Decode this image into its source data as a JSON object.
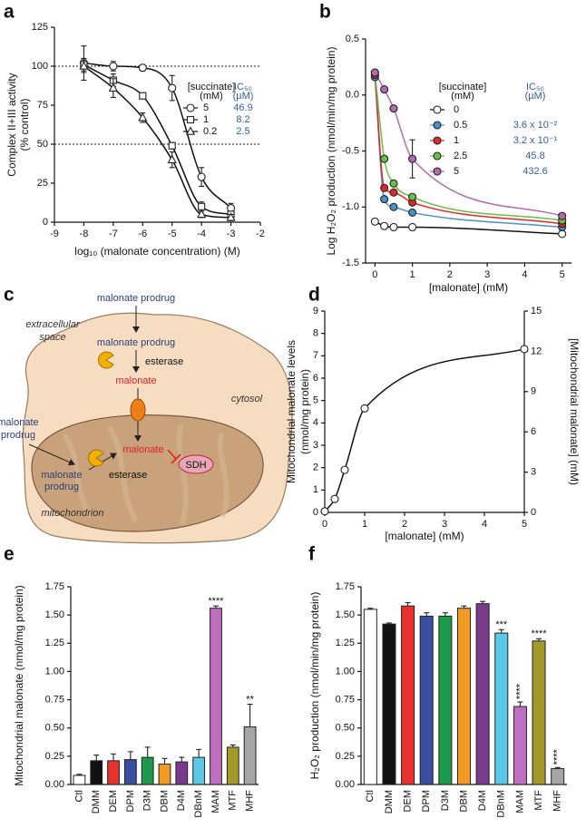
{
  "chart_data": [
    {
      "label": "a",
      "type": "line",
      "y_label": [
        "Complex II+III activity",
        "(% control)"
      ],
      "x_label": "log₁₀ (malonate concentration) (M)",
      "xlim": [
        -9,
        -2
      ],
      "xticks": [
        -9,
        -8,
        -7,
        -6,
        -5,
        -4,
        -3,
        -2
      ],
      "ylim": [
        0,
        125
      ],
      "yticks": [
        0,
        25,
        50,
        75,
        100,
        125
      ],
      "reference_lines": [
        100,
        50
      ],
      "legend_title": [
        "[succinate]",
        "(mM)"
      ],
      "legend_ic50_title": [
        "IC₅₀",
        "(µM)"
      ],
      "ic50_color": "#2f5ea8",
      "x": [
        -8,
        -7,
        -6,
        -5,
        -4,
        -3
      ],
      "series": [
        {
          "name": "5",
          "marker": "circle",
          "color": "#ffffff",
          "line_color": "#111111",
          "ic50": "46.9",
          "values": [
            102,
            100,
            99,
            86,
            29,
            9
          ],
          "errors": [
            11,
            3,
            2,
            8,
            6,
            3
          ]
        },
        {
          "name": "1",
          "marker": "square",
          "color": "#ffffff",
          "line_color": "#111111",
          "ic50": "8.2",
          "values": [
            101,
            91,
            81,
            49,
            10,
            5
          ],
          "errors": [
            4,
            4,
            2,
            2,
            3,
            2
          ]
        },
        {
          "name": "0.2",
          "marker": "triangle",
          "color": "#ffffff",
          "line_color": "#111111",
          "ic50": "2.5",
          "values": [
            100,
            86,
            67,
            40,
            5,
            3
          ],
          "errors": [
            4,
            6,
            3,
            5,
            2,
            2
          ]
        }
      ]
    },
    {
      "label": "b",
      "type": "line",
      "y_label": [
        "Log H₂O₂ production (nmol/min/mg protein)"
      ],
      "x_label": "[malonate] (mM)",
      "xlim": [
        -0.25,
        5.25
      ],
      "xticks": [
        0,
        1,
        2,
        3,
        4,
        5
      ],
      "ylim": [
        -1.5,
        0.5
      ],
      "yticks": [
        -1.5,
        {
          "value": -1,
          "label": "-1.0"
        },
        -0.5,
        {
          "value": 0,
          "label": "0.0"
        },
        0.5
      ],
      "legend_title": [
        "[succinate]",
        "(mM)"
      ],
      "legend_ic50_title": [
        "IC₅₀",
        "(µM)"
      ],
      "ic50_color": "#2f5ea8",
      "x": [
        0,
        0.25,
        0.5,
        1,
        5
      ],
      "series": [
        {
          "name": "0",
          "marker": "circle",
          "color": "#ffffff",
          "line_color": "#111111",
          "values": [
            -1.13,
            -1.17,
            -1.18,
            -1.18,
            -1.24
          ]
        },
        {
          "name": "0.5",
          "marker": "circle",
          "color": "#4a90c8",
          "line_color": "#4a90c8",
          "ic50": "3.6 x 10⁻²",
          "values": [
            0.16,
            -0.93,
            -1.0,
            -1.05,
            -1.18
          ]
        },
        {
          "name": "1",
          "marker": "circle",
          "color": "#e3262b",
          "line_color": "#e3262b",
          "ic50": "3.2 x 10⁻¹",
          "values": [
            0.18,
            -0.83,
            -0.87,
            -0.96,
            -1.15
          ]
        },
        {
          "name": "2.5",
          "marker": "circle",
          "color": "#6abf45",
          "line_color": "#6abf45",
          "ic50": "45.8",
          "values": [
            0.2,
            -0.57,
            -0.79,
            -0.91,
            -1.12
          ]
        },
        {
          "name": "5",
          "marker": "circle",
          "color": "#b36bb0",
          "line_color": "#b36bb0",
          "ic50": "432.6",
          "values": [
            0.2,
            0.05,
            -0.12,
            -0.57,
            -1.08
          ],
          "errors": [
            null,
            null,
            null,
            0.17,
            null
          ]
        }
      ]
    },
    {
      "label": "d",
      "type": "line",
      "y_label": [
        "Mitochondrial malonate levels",
        "(nmol/mg protein)"
      ],
      "y2_label": "[Mitochondrial malonate] (mM)",
      "x_label": "[malonate] (mM)",
      "xlim": [
        0,
        5
      ],
      "xticks": [
        0,
        1,
        2,
        3,
        4,
        5
      ],
      "ylim": [
        0,
        9
      ],
      "yticks": [
        0,
        1,
        2,
        3,
        4,
        5,
        6,
        7,
        8,
        9
      ],
      "y2lim": [
        0,
        15
      ],
      "y2ticks": [
        0,
        3,
        6,
        9,
        12,
        15
      ],
      "x": [
        0,
        0.25,
        0.5,
        1,
        5
      ],
      "series": [
        {
          "marker": "circle",
          "color": "#ffffff",
          "line_color": "#111111",
          "values": [
            0.05,
            0.6,
            1.9,
            4.65,
            7.3
          ]
        }
      ]
    },
    {
      "label": "e",
      "type": "bar",
      "y_label": [
        "Mitochondrial malonate (nmol/mg protein)"
      ],
      "ylim": [
        0,
        1.75
      ],
      "yticks": [
        {
          "value": 0,
          "label": "0.00"
        },
        {
          "value": 0.25,
          "label": "0.25"
        },
        {
          "value": 0.5,
          "label": "0.50"
        },
        {
          "value": 0.75,
          "label": "0.75"
        },
        {
          "value": 1,
          "label": "1.00"
        },
        {
          "value": 1.25,
          "label": "1.25"
        },
        {
          "value": 1.5,
          "label": "1.50"
        },
        {
          "value": 1.75,
          "label": "1.75"
        }
      ],
      "categories": [
        "Ctl",
        "DMM",
        "DEM",
        "DPM",
        "D3M",
        "DBM",
        "D4M",
        "DBnM",
        "MAM",
        "MTF",
        "MHF"
      ],
      "values": [
        0.08,
        0.21,
        0.21,
        0.22,
        0.24,
        0.18,
        0.2,
        0.24,
        1.56,
        0.33,
        0.51
      ],
      "errors": [
        0.01,
        0.05,
        0.06,
        0.07,
        0.09,
        0.05,
        0.04,
        0.07,
        0.02,
        0.02,
        0.2
      ],
      "colors": [
        "#ffffff",
        "#111111",
        "#e8312f",
        "#3a4fa0",
        "#1d9a4b",
        "#f39a23",
        "#7b3a8b",
        "#5bc8e8",
        "#c06fc0",
        "#a2992a",
        "#a5a5a5"
      ],
      "significance": [
        null,
        null,
        null,
        null,
        null,
        null,
        null,
        null,
        "****",
        null,
        "**"
      ]
    },
    {
      "label": "f",
      "type": "bar",
      "y_label": [
        "H₂O₂ production (nmol/min/mg protein)"
      ],
      "ylim": [
        0,
        1.75
      ],
      "yticks": [
        {
          "value": 0,
          "label": "0.00"
        },
        {
          "value": 0.25,
          "label": "0.25"
        },
        {
          "value": 0.5,
          "label": "0.50"
        },
        {
          "value": 0.75,
          "label": "0.75"
        },
        {
          "value": 1,
          "label": "1.00"
        },
        {
          "value": 1.25,
          "label": "1.25"
        },
        {
          "value": 1.5,
          "label": "1.50"
        },
        {
          "value": 1.75,
          "label": "1.75"
        }
      ],
      "categories": [
        "Ctl",
        "DMM",
        "DEM",
        "DPM",
        "D3M",
        "DBM",
        "D4M",
        "DBnM",
        "MAM",
        "MTF",
        "MHF"
      ],
      "values": [
        1.55,
        1.42,
        1.58,
        1.49,
        1.49,
        1.56,
        1.6,
        1.34,
        0.69,
        1.27,
        0.14
      ],
      "errors": [
        0.01,
        0.01,
        0.03,
        0.03,
        0.03,
        0.02,
        0.02,
        0.03,
        0.04,
        0.02,
        0.01
      ],
      "colors": [
        "#ffffff",
        "#111111",
        "#e8312f",
        "#3a4fa0",
        "#1d9a4b",
        "#f39a23",
        "#7b3a8b",
        "#5bc8e8",
        "#c06fc0",
        "#a2992a",
        "#a5a5a5"
      ],
      "significance": [
        null,
        null,
        null,
        null,
        null,
        null,
        null,
        "***",
        "****",
        "****",
        "****"
      ]
    }
  ],
  "diagram": {
    "label": "c",
    "top_prodrug": "malonate prodrug",
    "extracellular": [
      "extracellular",
      "space"
    ],
    "cytosol_prodrug": "malonate prodrug",
    "cytosol_esterase": "esterase",
    "cytosol_malonate": "malonate",
    "cytosol": "cytosol",
    "outside_prodrug": [
      "malonate",
      "prodrug"
    ],
    "mito_malonate": "malonate",
    "mito_esterase": "esterase",
    "sdh": "SDH",
    "mito_prodrug": [
      "malonate",
      "prodrug"
    ],
    "mitochondrion": "mitochondrion"
  }
}
